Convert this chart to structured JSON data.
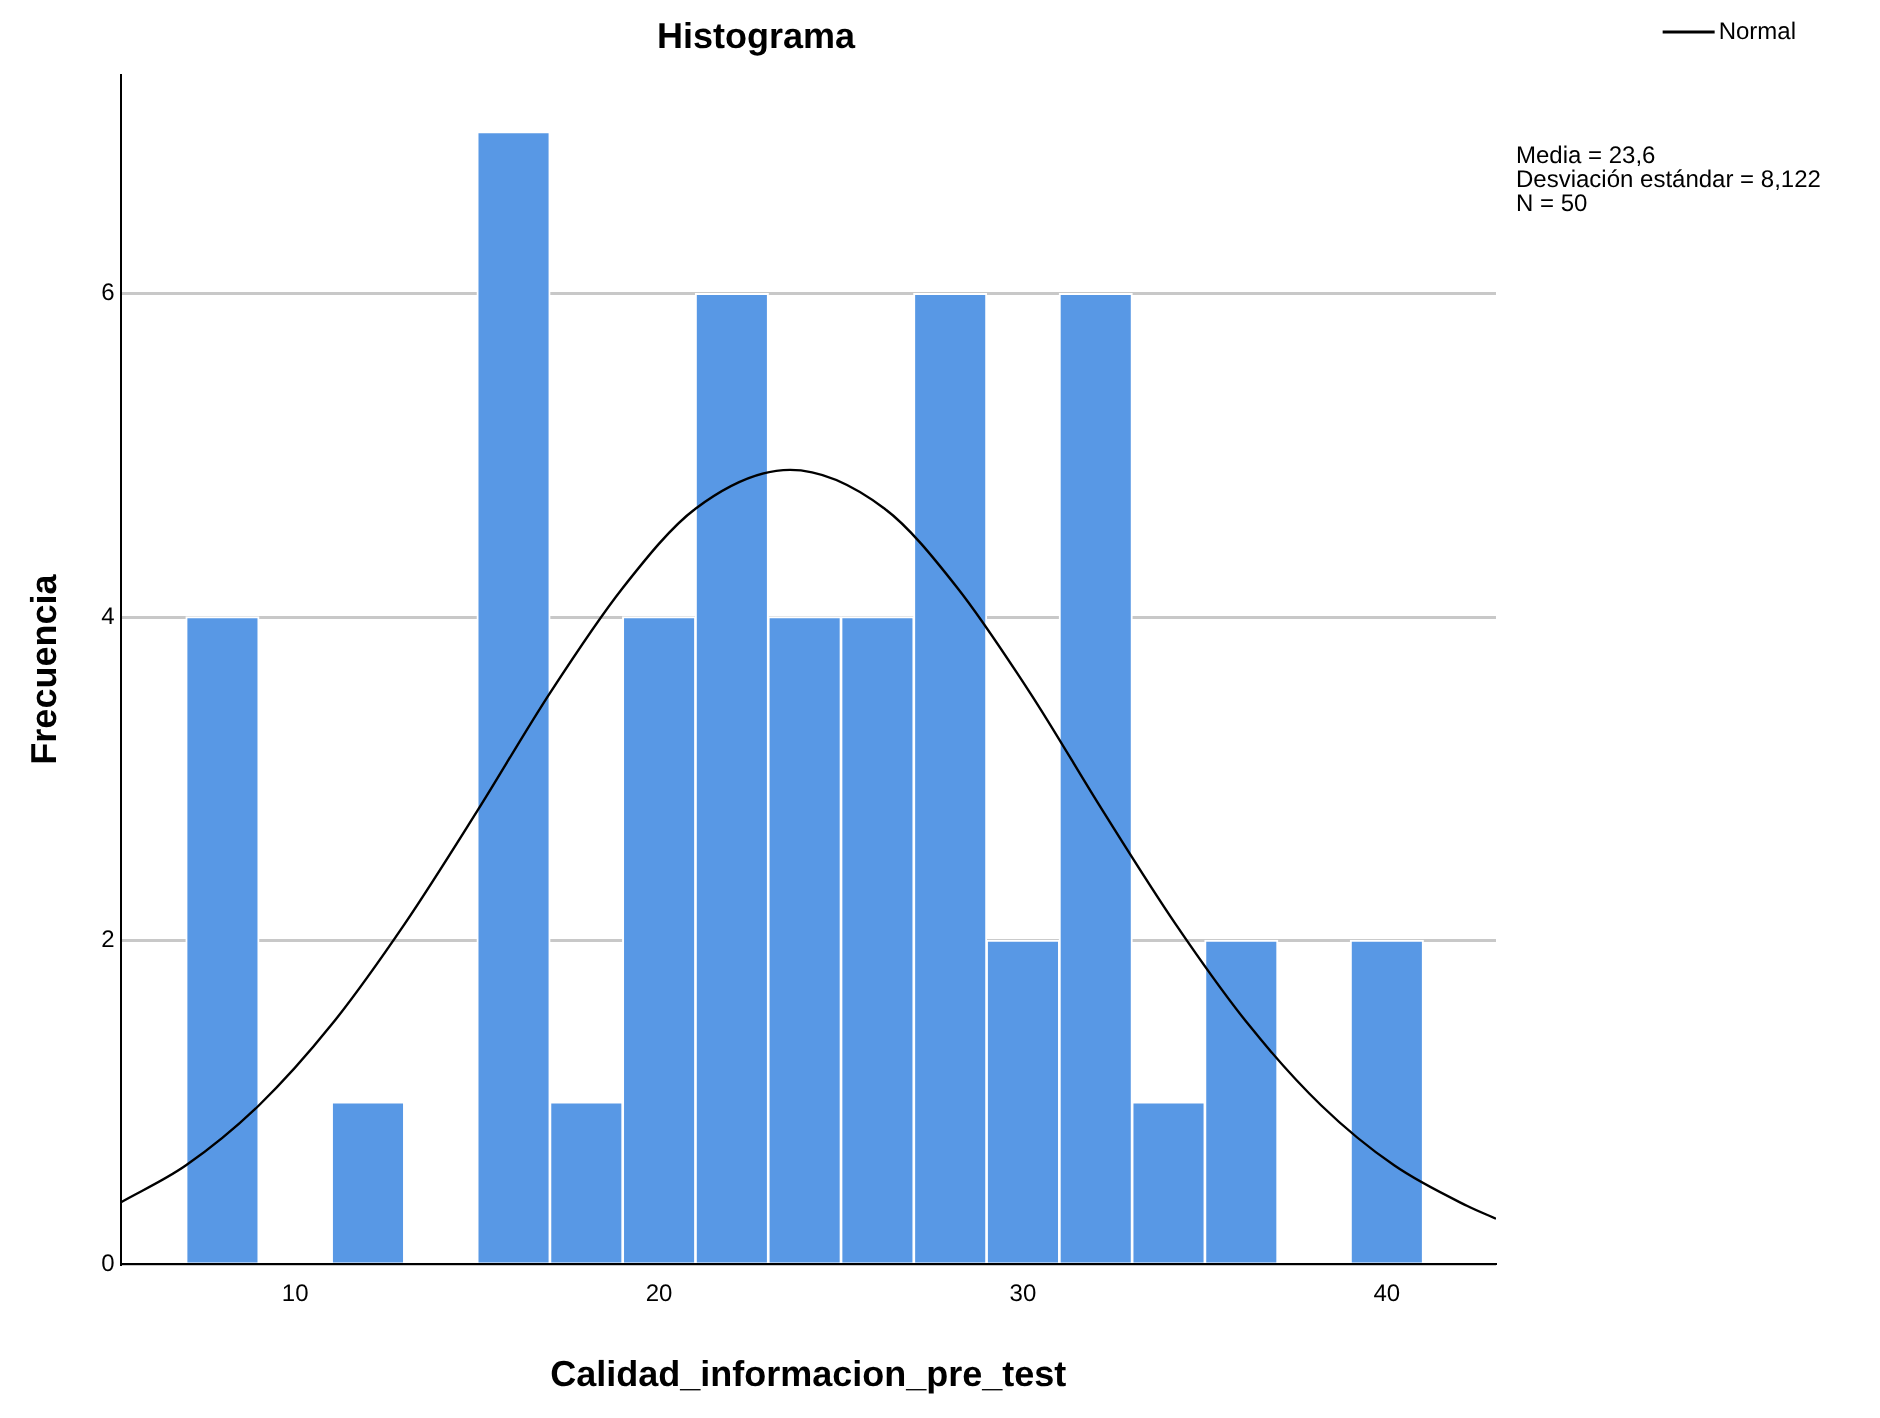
{
  "chart_data": {
    "type": "histogram",
    "title": "Histograma",
    "xlabel": "Calidad_informacion_pre_test",
    "ylabel": "Frecuencia",
    "bins": [
      7,
      9,
      11,
      13,
      15,
      17,
      19,
      21,
      23,
      25,
      27,
      29,
      31,
      33,
      35,
      37,
      39,
      41
    ],
    "values": [
      4,
      0,
      1,
      0,
      7,
      1,
      4,
      6,
      4,
      4,
      6,
      2,
      6,
      1,
      2,
      0,
      2
    ],
    "color": "#5898e5",
    "xlim": [
      5.2,
      43
    ],
    "ylim": [
      0,
      7.35
    ],
    "xticks": [
      10,
      20,
      30,
      40
    ],
    "yticks": [
      0,
      2,
      4,
      6
    ],
    "grid": "y",
    "legend": "top right",
    "annotations": [
      "Media = 23,6",
      "Desviación estándar = 8,122",
      "N = 50"
    ],
    "series": [
      {
        "name": "Normal",
        "type": "line",
        "color": "#000000",
        "x": [
          5.2,
          7,
          9,
          11,
          13,
          15,
          17,
          19,
          21,
          23.6,
          26.2,
          28.2,
          30.2,
          32.2,
          34.2,
          36.2,
          38.2,
          40.2,
          42.2,
          43
        ],
        "values": [
          0.38,
          0.61,
          0.98,
          1.48,
          2.1,
          2.8,
          3.53,
          4.18,
          4.67,
          4.91,
          4.67,
          4.18,
          3.53,
          2.8,
          2.1,
          1.48,
          0.98,
          0.61,
          0.36,
          0.28
        ]
      }
    ]
  }
}
